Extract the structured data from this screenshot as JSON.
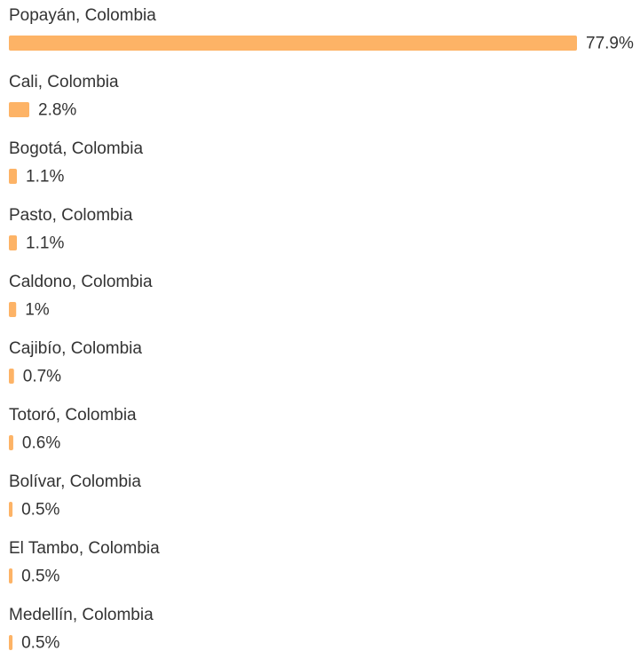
{
  "chart_data": {
    "type": "bar",
    "orientation": "horizontal",
    "color": "#fdb366",
    "categories": [
      "Popayán, Colombia",
      "Cali, Colombia",
      "Bogotá, Colombia",
      "Pasto, Colombia",
      "Caldono, Colombia",
      "Cajibío, Colombia",
      "Totoró, Colombia",
      "Bolívar, Colombia",
      "El Tambo, Colombia",
      "Medellín, Colombia"
    ],
    "values": [
      77.9,
      2.8,
      1.1,
      1.1,
      1,
      0.7,
      0.6,
      0.5,
      0.5,
      0.5
    ],
    "value_labels": [
      "77.9%",
      "2.8%",
      "1.1%",
      "1.1%",
      "1%",
      "0.7%",
      "0.6%",
      "0.5%",
      "0.5%",
      "0.5%"
    ]
  }
}
